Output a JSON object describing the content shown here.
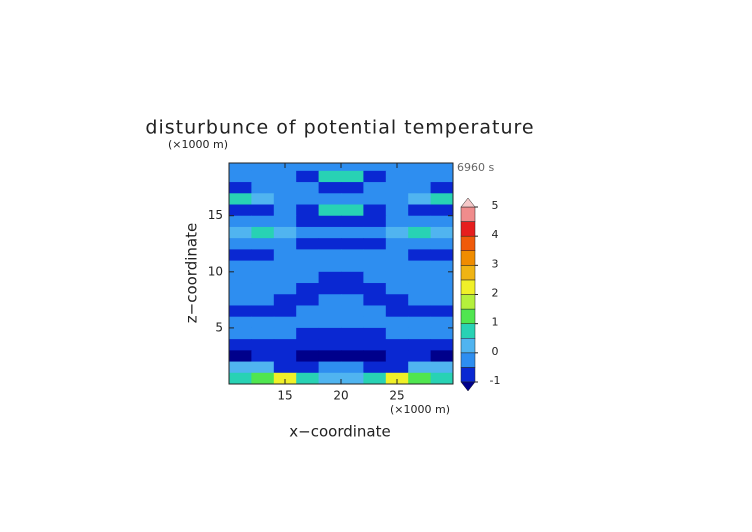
{
  "chart_data": {
    "type": "contour",
    "title": "disturbunce of potential temperature",
    "y_unit_label": "(×1000 m)",
    "x_unit_label": "(×1000 m)",
    "time_label": "6960 s",
    "xlabel": "x−coordinate",
    "ylabel": "z−coordinate",
    "xlim": [
      10,
      30
    ],
    "ylim": [
      0,
      19.7
    ],
    "xticks": [
      15,
      20,
      25
    ],
    "yticks": [
      5,
      10,
      15
    ],
    "x": [
      11,
      13,
      15,
      17,
      19,
      21,
      23,
      25,
      27,
      29
    ],
    "z": [
      19.5,
      18.5,
      17.5,
      16.5,
      15.5,
      14.5,
      13.5,
      12.5,
      11.5,
      10.5,
      9.5,
      8.5,
      7.5,
      6.5,
      5.5,
      4.5,
      3.5,
      2.5,
      1.5,
      0.5
    ],
    "values": [
      [
        -0.2,
        -0.2,
        -0.2,
        -0.2,
        -0.2,
        -0.2,
        -0.2,
        -0.2,
        -0.2,
        -0.2
      ],
      [
        -0.2,
        -0.2,
        -0.2,
        -0.6,
        0.7,
        0.7,
        -0.6,
        -0.2,
        -0.2,
        -0.2
      ],
      [
        -0.7,
        -0.2,
        -0.2,
        -0.2,
        -0.6,
        -0.6,
        -0.2,
        -0.2,
        -0.2,
        -0.7
      ],
      [
        0.6,
        0.3,
        -0.2,
        -0.2,
        -0.2,
        -0.2,
        -0.2,
        -0.2,
        0.3,
        0.6
      ],
      [
        -0.6,
        -0.7,
        -0.2,
        -0.7,
        0.7,
        0.7,
        -0.7,
        -0.2,
        -0.7,
        -0.6
      ],
      [
        -0.2,
        -0.2,
        -0.2,
        -0.6,
        -0.7,
        -0.7,
        -0.6,
        -0.2,
        -0.2,
        -0.2
      ],
      [
        0.3,
        0.7,
        0.2,
        -0.2,
        -0.2,
        -0.2,
        -0.2,
        0.2,
        0.7,
        0.3
      ],
      [
        -0.2,
        -0.2,
        -0.2,
        -0.6,
        -0.6,
        -0.6,
        -0.6,
        -0.2,
        -0.2,
        -0.2
      ],
      [
        -0.6,
        -0.6,
        -0.2,
        -0.2,
        -0.2,
        -0.2,
        -0.2,
        -0.2,
        -0.6,
        -0.6
      ],
      [
        -0.2,
        -0.2,
        -0.2,
        -0.2,
        -0.2,
        -0.2,
        -0.2,
        -0.2,
        -0.2,
        -0.2
      ],
      [
        -0.2,
        -0.2,
        -0.2,
        -0.2,
        -0.6,
        -0.6,
        -0.2,
        -0.2,
        -0.2,
        -0.2
      ],
      [
        -0.2,
        -0.2,
        -0.2,
        -0.6,
        -0.6,
        -0.6,
        -0.6,
        -0.2,
        -0.2,
        -0.2
      ],
      [
        -0.2,
        -0.2,
        -0.6,
        -0.6,
        -0.2,
        -0.2,
        -0.6,
        -0.6,
        -0.2,
        -0.2
      ],
      [
        -0.6,
        -0.6,
        -0.6,
        -0.2,
        -0.2,
        -0.2,
        -0.2,
        -0.6,
        -0.6,
        -0.6
      ],
      [
        -0.2,
        -0.2,
        -0.2,
        -0.2,
        -0.2,
        -0.2,
        -0.2,
        -0.2,
        -0.2,
        -0.2
      ],
      [
        -0.2,
        -0.2,
        -0.2,
        -0.6,
        -0.6,
        -0.6,
        -0.6,
        -0.2,
        -0.2,
        -0.2
      ],
      [
        -0.6,
        -0.6,
        -0.6,
        -0.6,
        -0.6,
        -0.6,
        -0.6,
        -0.6,
        -0.6,
        -0.6
      ],
      [
        -1.1,
        -0.6,
        -0.7,
        -1.1,
        -1.1,
        -1.1,
        -1.1,
        -0.7,
        -0.6,
        -1.1
      ],
      [
        0.3,
        0.2,
        -0.6,
        -0.6,
        -0.2,
        -0.2,
        -0.6,
        -0.6,
        0.2,
        0.3
      ],
      [
        0.7,
        1.3,
        2.1,
        0.7,
        0.3,
        0.3,
        0.7,
        2.1,
        1.3,
        0.7
      ]
    ],
    "levels": [
      -1,
      -0.5,
      0,
      0.5,
      1,
      1.5,
      2,
      2.5,
      3,
      3.5,
      4,
      4.5,
      5
    ],
    "colors": [
      "#0a28d2",
      "#2e8ef0",
      "#50b4f0",
      "#28d2b4",
      "#50e650",
      "#b4f03c",
      "#f0f028",
      "#f0b414",
      "#f08c00",
      "#f05a0a",
      "#e61e1e",
      "#f08c8c"
    ],
    "under_color": "#00008b",
    "over_color": "#f5c8c8",
    "colorbar_ticks": [
      -1,
      0,
      1,
      2,
      3,
      4,
      5
    ]
  }
}
